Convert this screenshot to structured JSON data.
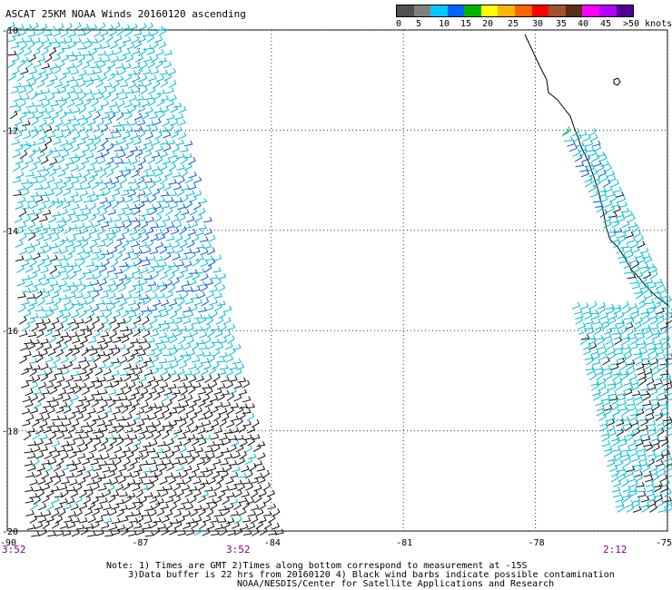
{
  "title": "ASCAT 25KM NOAA Winds 20160120 ascending",
  "legend": {
    "colors": [
      "#505050",
      "#808080",
      "#00c8ff",
      "#0064ff",
      "#00b400",
      "#ffff00",
      "#ffb400",
      "#ff6400",
      "#ff0000",
      "#a0522d",
      "#5a2d14",
      "#ff00ff",
      "#b400ff",
      "#500096"
    ],
    "labels": [
      "0",
      "5",
      "10",
      "15",
      "20",
      "25",
      "30",
      "35",
      "40",
      "45",
      ">50 knots"
    ]
  },
  "map": {
    "lat_labels": [
      "-10",
      "-12",
      "-14",
      "-16",
      "-18",
      "-20"
    ],
    "lon_labels": [
      "-90",
      "-87",
      "-84",
      "-81",
      "-78",
      "-75"
    ],
    "lat_values": [
      -10,
      -12,
      -14,
      -16,
      -18,
      -20
    ],
    "lon_values": [
      -90,
      -87,
      -84,
      -81,
      -78,
      -75
    ],
    "barb_colors": {
      "clean": "#00bcd4",
      "strong": "#1050e0",
      "contaminated": "#111111",
      "green": "#00c000"
    }
  },
  "times": {
    "left": "3:52",
    "mid": "3:52",
    "right": "2:12"
  },
  "notes": {
    "line1": "Note: 1) Times are GMT 2)Times along bottom correspond to measurement at -15S",
    "line2": "3)Data buffer is 22 hrs from 20160120 4) Black wind barbs indicate possible contamination",
    "line3": "NOAA/NESDIS/Center for Satellite Applications and Research"
  }
}
